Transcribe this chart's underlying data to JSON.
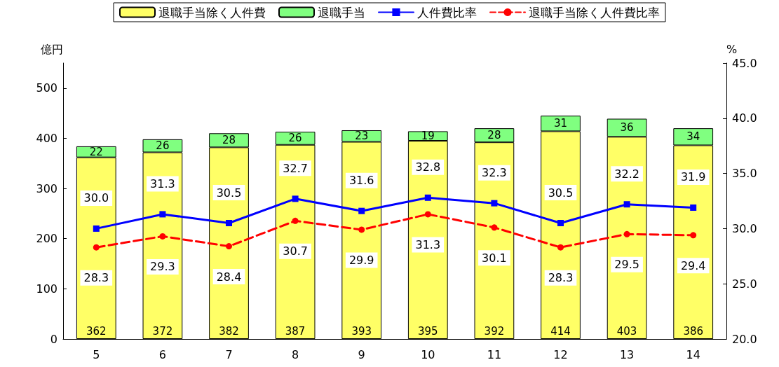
{
  "chart_data": {
    "type": "bar",
    "stacked": true,
    "categories": [
      "5",
      "6",
      "7",
      "8",
      "9",
      "10",
      "11",
      "12",
      "13",
      "14"
    ],
    "ylabel": "億円",
    "y2label": "%",
    "ylim": [
      0,
      550
    ],
    "yticks": [
      0,
      100,
      200,
      300,
      400,
      500
    ],
    "y2lim": [
      20,
      45
    ],
    "y2ticks": [
      {
        "value": 20,
        "label": "20.0"
      },
      {
        "value": 25,
        "label": "25.0"
      },
      {
        "value": 30,
        "label": "30.0"
      },
      {
        "value": 35,
        "label": "35.0"
      },
      {
        "value": 40,
        "label": "40.0"
      },
      {
        "value": 45,
        "label": "45.0"
      }
    ],
    "series": [
      {
        "name": "退職手当除く人件費",
        "color": "#ffff66",
        "values": [
          362,
          372,
          382,
          387,
          393,
          395,
          392,
          414,
          403,
          386
        ]
      },
      {
        "name": "退職手当",
        "color": "#80ff80",
        "values": [
          22,
          26,
          28,
          26,
          23,
          19,
          28,
          31,
          36,
          34
        ]
      },
      {
        "name": "人件費比率",
        "type": "line",
        "axis": "y2",
        "color": "#0000ff",
        "marker": "square",
        "line_style": "solid",
        "values": [
          30.0,
          31.3,
          30.5,
          32.7,
          31.6,
          32.8,
          32.3,
          30.5,
          32.2,
          31.9
        ],
        "value_labels": [
          "30.0",
          "31.3",
          "30.5",
          "32.7",
          "31.6",
          "32.8",
          "32.3",
          "30.5",
          "32.2",
          "31.9"
        ]
      },
      {
        "name": "退職手当除く人件費比率",
        "type": "line",
        "axis": "y2",
        "color": "#ff0000",
        "marker": "circle",
        "line_style": "dashed",
        "values": [
          28.3,
          29.3,
          28.4,
          30.7,
          29.9,
          31.3,
          30.1,
          28.3,
          29.5,
          29.4
        ],
        "value_labels": [
          "28.3",
          "29.3",
          "28.4",
          "30.7",
          "29.9",
          "31.3",
          "30.1",
          "28.3",
          "29.5",
          "29.4"
        ]
      }
    ],
    "data_labels": true,
    "legend": "top",
    "grid": false
  }
}
